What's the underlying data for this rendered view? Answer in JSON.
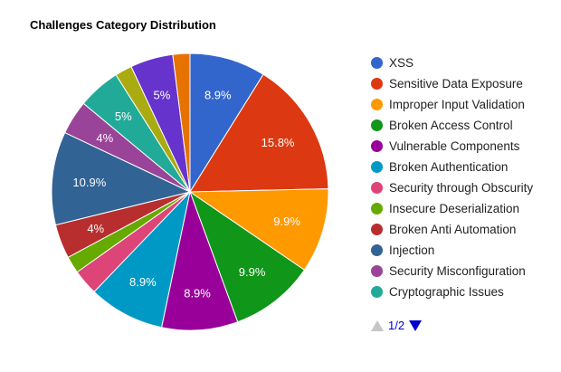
{
  "chart_data": {
    "type": "pie",
    "title": "Challenges Category Distribution",
    "slices": [
      {
        "label": "XSS",
        "value": 8.9,
        "display": "8.9%",
        "color": "#3366cc"
      },
      {
        "label": "Sensitive Data Exposure",
        "value": 15.8,
        "display": "15.8%",
        "color": "#dc3912"
      },
      {
        "label": "Improper Input Validation",
        "value": 9.9,
        "display": "9.9%",
        "color": "#ff9900"
      },
      {
        "label": "Broken Access Control",
        "value": 9.9,
        "display": "9.9%",
        "color": "#109618"
      },
      {
        "label": "Vulnerable Components",
        "value": 8.9,
        "display": "8.9%",
        "color": "#990099"
      },
      {
        "label": "Broken Authentication",
        "value": 8.9,
        "display": "8.9%",
        "color": "#0099c6"
      },
      {
        "label": "Security through Obscurity",
        "value": 3.0,
        "display": "",
        "color": "#dd4477"
      },
      {
        "label": "Insecure Deserialization",
        "value": 2.0,
        "display": "",
        "color": "#66aa00"
      },
      {
        "label": "Broken Anti Automation",
        "value": 4.0,
        "display": "4%",
        "color": "#b82e2e"
      },
      {
        "label": "Injection",
        "value": 10.9,
        "display": "10.9%",
        "color": "#316395"
      },
      {
        "label": "Security Misconfiguration",
        "value": 4.0,
        "display": "4%",
        "color": "#994499"
      },
      {
        "label": "Cryptographic Issues",
        "value": 5.0,
        "display": "5%",
        "color": "#22aa99"
      },
      {
        "label": "",
        "value": 2.0,
        "display": "",
        "color": "#aaaa11"
      },
      {
        "label": "",
        "value": 5.0,
        "display": "5%",
        "color": "#6633cc"
      },
      {
        "label": "",
        "value": 2.0,
        "display": "",
        "color": "#e67300"
      }
    ],
    "legend": {
      "position": "right"
    }
  },
  "pager": {
    "text": "1/2"
  }
}
